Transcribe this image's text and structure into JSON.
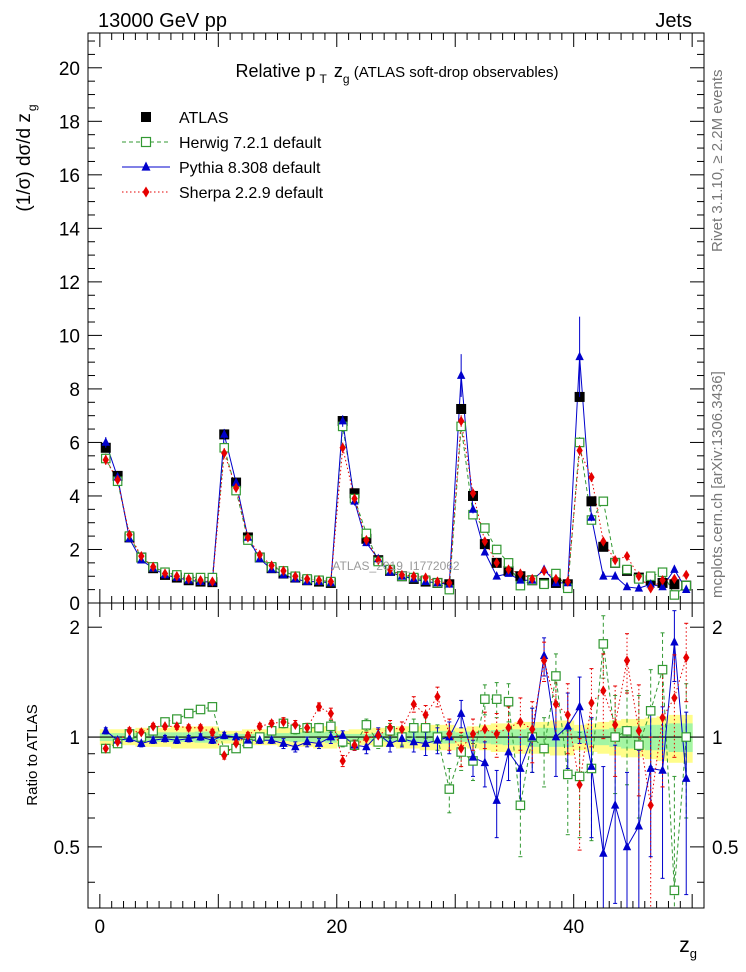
{
  "header": {
    "left": "13000 GeV pp",
    "right": "Jets"
  },
  "side_text": {
    "top": "Rivet 3.1.10, ≥ 2.2M events",
    "bottom": "mcplots.cern.ch [arXiv:1306.3436]"
  },
  "chart_data": [
    {
      "type": "scatter",
      "title_main": "Relative p",
      "title_sub": "T",
      "title_mid": " z",
      "title_sub2": "g",
      "title_rest": " (ATLAS soft-drop observables)",
      "ylabel": "(1/σ) dσ/d z",
      "ylabel_sub": "g",
      "watermark": "ATLAS_2019_I1772062",
      "xlim": [
        -1,
        51
      ],
      "ylim": [
        0,
        21.3
      ],
      "y_ticks": [
        0,
        2,
        4,
        6,
        8,
        10,
        12,
        14,
        16,
        18,
        20
      ],
      "y_tick_labels": [
        "0",
        "2",
        "4",
        "6",
        "8",
        "10",
        "12",
        "14",
        "16",
        "18",
        "20"
      ],
      "x": [
        0.5,
        1.5,
        2.5,
        3.5,
        4.5,
        5.5,
        6.5,
        7.5,
        8.5,
        9.5,
        10.5,
        11.5,
        12.5,
        13.5,
        14.5,
        15.5,
        16.5,
        17.5,
        18.5,
        19.5,
        20.5,
        21.5,
        22.5,
        23.5,
        24.5,
        25.5,
        26.5,
        27.5,
        28.5,
        29.5,
        30.5,
        31.5,
        32.5,
        33.5,
        34.5,
        35.5,
        36.5,
        37.5,
        38.5,
        39.5,
        40.5,
        41.5,
        42.5,
        43.5,
        44.5,
        45.5,
        46.5,
        47.5,
        48.5,
        49.5
      ],
      "series": [
        {
          "name": "ATLAS",
          "marker": "square-filled",
          "color": "#000000",
          "values": [
            5.8,
            4.75,
            2.45,
            1.7,
            1.3,
            1.05,
            0.95,
            0.85,
            0.8,
            0.78,
            6.3,
            4.5,
            2.45,
            1.7,
            1.3,
            1.1,
            0.95,
            0.85,
            0.8,
            0.75,
            6.8,
            4.1,
            2.4,
            1.6,
            1.2,
            1.0,
            0.9,
            0.8,
            0.75,
            0.7,
            7.25,
            4.0,
            2.2,
            1.5,
            1.2,
            1.0,
            0.85,
            0.75,
            0.75,
            0.7,
            7.7,
            3.8,
            2.1,
            1.5,
            1.2,
            0.95,
            0.85,
            0.75,
            0.7,
            0.65
          ]
        },
        {
          "name": "Herwig 7.2.1 default",
          "marker": "square-open",
          "color": "#339933",
          "values": [
            5.4,
            4.55,
            2.5,
            1.7,
            1.35,
            1.15,
            1.05,
            0.95,
            0.95,
            0.95,
            5.8,
            4.2,
            2.35,
            1.7,
            1.35,
            1.2,
            1.0,
            0.9,
            0.85,
            0.8,
            6.6,
            3.9,
            2.6,
            1.55,
            1.25,
            1.0,
            0.95,
            0.85,
            0.75,
            0.5,
            6.6,
            3.3,
            2.8,
            2.0,
            1.5,
            0.65,
            0.85,
            0.7,
            1.1,
            0.55,
            6.0,
            3.1,
            3.8,
            1.5,
            1.25,
            0.9,
            1.0,
            1.15,
            0.3,
            0.65
          ]
        },
        {
          "name": "Pythia 8.308 default",
          "marker": "triangle-filled",
          "color": "#0000cc",
          "values": [
            6.0,
            4.7,
            2.4,
            1.6,
            1.3,
            1.05,
            0.95,
            0.85,
            0.8,
            0.78,
            6.3,
            4.5,
            2.45,
            1.65,
            1.25,
            1.05,
            0.9,
            0.8,
            0.8,
            0.75,
            6.8,
            3.8,
            2.25,
            1.65,
            1.15,
            1.0,
            0.9,
            0.8,
            0.75,
            0.7,
            8.5,
            3.5,
            1.9,
            1.0,
            1.1,
            0.85,
            0.85,
            1.25,
            0.75,
            0.75,
            9.2,
            3.2,
            1.0,
            1.0,
            0.6,
            0.55,
            0.7,
            0.6,
            1.25,
            0.5
          ]
        },
        {
          "name": "Sherpa 2.2.9 default",
          "marker": "diamond-filled",
          "color": "#e60000",
          "values": [
            5.35,
            4.6,
            2.55,
            1.75,
            1.35,
            1.1,
            1.0,
            0.9,
            0.85,
            0.8,
            5.6,
            4.3,
            2.45,
            1.8,
            1.4,
            1.2,
            1.0,
            0.9,
            0.85,
            0.8,
            5.8,
            3.9,
            2.35,
            1.6,
            1.25,
            1.05,
            1.0,
            0.95,
            0.8,
            0.75,
            6.8,
            4.1,
            2.3,
            1.5,
            1.25,
            1.1,
            0.9,
            1.2,
            0.9,
            0.8,
            5.7,
            4.7,
            2.3,
            1.6,
            1.75,
            1.0,
            0.55,
            0.85,
            0.9,
            1.05
          ]
        }
      ]
    },
    {
      "type": "scatter",
      "ylabel": "Ratio to ATLAS",
      "xlabel": "z",
      "xlabel_sub": "g",
      "xlim": [
        -1,
        51
      ],
      "ylim": [
        0.34,
        2.33
      ],
      "x_ticks": [
        0,
        20,
        40
      ],
      "x_tick_labels": [
        "0",
        "20",
        "40"
      ],
      "y_ticks": [
        0.5,
        1,
        2
      ],
      "y_tick_labels": [
        "0.5",
        "1",
        "2"
      ],
      "x": [
        0.5,
        1.5,
        2.5,
        3.5,
        4.5,
        5.5,
        6.5,
        7.5,
        8.5,
        9.5,
        10.5,
        11.5,
        12.5,
        13.5,
        14.5,
        15.5,
        16.5,
        17.5,
        18.5,
        19.5,
        20.5,
        21.5,
        22.5,
        23.5,
        24.5,
        25.5,
        26.5,
        27.5,
        28.5,
        29.5,
        30.5,
        31.5,
        32.5,
        33.5,
        34.5,
        35.5,
        36.5,
        37.5,
        38.5,
        39.5,
        40.5,
        41.5,
        42.5,
        43.5,
        44.5,
        45.5,
        46.5,
        47.5,
        48.5,
        49.5
      ],
      "band_inner_halfwidth": [
        0.025,
        0.025,
        0.025,
        0.025,
        0.03,
        0.03,
        0.03,
        0.03,
        0.035,
        0.035,
        0.02,
        0.02,
        0.02,
        0.02,
        0.025,
        0.025,
        0.03,
        0.03,
        0.03,
        0.035,
        0.02,
        0.02,
        0.02,
        0.025,
        0.03,
        0.03,
        0.035,
        0.035,
        0.04,
        0.04,
        0.03,
        0.035,
        0.04,
        0.045,
        0.05,
        0.05,
        0.06,
        0.06,
        0.06,
        0.06,
        0.04,
        0.05,
        0.05,
        0.06,
        0.07,
        0.07,
        0.08,
        0.08,
        0.09,
        0.09
      ],
      "band_outer_halfwidth": [
        0.05,
        0.05,
        0.05,
        0.06,
        0.06,
        0.06,
        0.07,
        0.07,
        0.07,
        0.07,
        0.04,
        0.04,
        0.05,
        0.05,
        0.05,
        0.06,
        0.06,
        0.06,
        0.07,
        0.07,
        0.04,
        0.05,
        0.05,
        0.06,
        0.06,
        0.07,
        0.07,
        0.08,
        0.08,
        0.08,
        0.06,
        0.07,
        0.08,
        0.09,
        0.09,
        0.1,
        0.1,
        0.1,
        0.11,
        0.11,
        0.08,
        0.09,
        0.1,
        0.11,
        0.12,
        0.12,
        0.13,
        0.14,
        0.15,
        0.15
      ],
      "series": [
        {
          "name": "Herwig 7.2.1 default",
          "marker": "square-open",
          "color": "#339933",
          "values": [
            0.93,
            0.96,
            1.02,
            1.0,
            1.04,
            1.1,
            1.12,
            1.16,
            1.19,
            1.21,
            0.92,
            0.93,
            0.96,
            1.0,
            1.04,
            1.09,
            1.05,
            1.06,
            1.06,
            1.07,
            0.97,
            0.95,
            1.08,
            0.97,
            1.04,
            1.0,
            1.06,
            1.06,
            1.0,
            0.72,
            0.91,
            0.86,
            1.27,
            1.27,
            1.25,
            0.65,
            1.0,
            0.93,
            1.47,
            0.79,
            0.78,
            0.82,
            1.8,
            1.0,
            1.04,
            0.95,
            1.18,
            1.53,
            0.38,
            1.0
          ],
          "errors": [
            0.02,
            0.02,
            0.02,
            0.02,
            0.02,
            0.02,
            0.02,
            0.02,
            0.02,
            0.02,
            0.02,
            0.02,
            0.02,
            0.02,
            0.02,
            0.03,
            0.03,
            0.03,
            0.03,
            0.04,
            0.03,
            0.03,
            0.04,
            0.04,
            0.05,
            0.05,
            0.06,
            0.07,
            0.08,
            0.1,
            0.1,
            0.1,
            0.12,
            0.14,
            0.15,
            0.18,
            0.2,
            0.2,
            0.22,
            0.25,
            0.25,
            0.3,
            0.35,
            0.3,
            0.3,
            0.35,
            0.35,
            0.4,
            0.4,
            0.4
          ]
        },
        {
          "name": "Pythia 8.308 default",
          "marker": "triangle-filled",
          "color": "#0000cc",
          "values": [
            1.04,
            0.98,
            0.99,
            0.96,
            0.98,
            0.99,
            0.98,
            0.99,
            1.0,
            0.98,
            1.01,
            1.0,
            0.98,
            0.98,
            0.98,
            0.96,
            0.94,
            0.97,
            0.96,
            1.0,
            1.01,
            0.95,
            0.94,
            1.02,
            0.96,
            0.99,
            0.97,
            0.96,
            0.98,
            1.0,
            1.16,
            0.88,
            0.85,
            0.67,
            0.91,
            0.82,
            1.0,
            1.67,
            1.0,
            1.07,
            1.21,
            0.83,
            0.48,
            0.65,
            0.5,
            0.57,
            0.82,
            0.81,
            1.82,
            0.77
          ],
          "errors": [
            0.02,
            0.02,
            0.02,
            0.02,
            0.02,
            0.02,
            0.02,
            0.02,
            0.02,
            0.02,
            0.02,
            0.02,
            0.02,
            0.02,
            0.02,
            0.03,
            0.03,
            0.03,
            0.03,
            0.04,
            0.03,
            0.03,
            0.04,
            0.04,
            0.05,
            0.05,
            0.06,
            0.07,
            0.08,
            0.1,
            0.1,
            0.1,
            0.12,
            0.14,
            0.15,
            0.18,
            0.2,
            0.2,
            0.22,
            0.25,
            0.25,
            0.3,
            0.35,
            0.3,
            0.3,
            0.35,
            0.35,
            0.4,
            0.4,
            0.4
          ]
        },
        {
          "name": "Sherpa 2.2.9 default",
          "marker": "diamond-filled",
          "color": "#e60000",
          "values": [
            0.93,
            0.97,
            1.04,
            1.03,
            1.07,
            1.07,
            1.07,
            1.06,
            1.06,
            1.03,
            0.89,
            0.96,
            1.01,
            1.07,
            1.09,
            1.1,
            1.08,
            1.06,
            1.21,
            1.16,
            0.86,
            0.95,
            0.99,
            1.01,
            1.06,
            1.05,
            1.23,
            1.15,
            1.29,
            1.02,
            0.93,
            1.02,
            1.05,
            1.02,
            1.06,
            1.1,
            1.05,
            1.62,
            1.23,
            1.15,
            0.74,
            1.24,
            1.34,
            1.08,
            1.62,
            1.04,
            0.65,
            1.13,
            1.28,
            1.65
          ],
          "errors": [
            0.02,
            0.02,
            0.02,
            0.02,
            0.02,
            0.02,
            0.02,
            0.02,
            0.02,
            0.02,
            0.02,
            0.02,
            0.02,
            0.02,
            0.02,
            0.03,
            0.03,
            0.03,
            0.03,
            0.04,
            0.03,
            0.03,
            0.04,
            0.04,
            0.05,
            0.05,
            0.06,
            0.07,
            0.08,
            0.1,
            0.1,
            0.1,
            0.12,
            0.14,
            0.15,
            0.18,
            0.2,
            0.2,
            0.22,
            0.25,
            0.25,
            0.3,
            0.35,
            0.3,
            0.3,
            0.35,
            0.35,
            0.4,
            0.4,
            0.4
          ]
        }
      ]
    }
  ]
}
